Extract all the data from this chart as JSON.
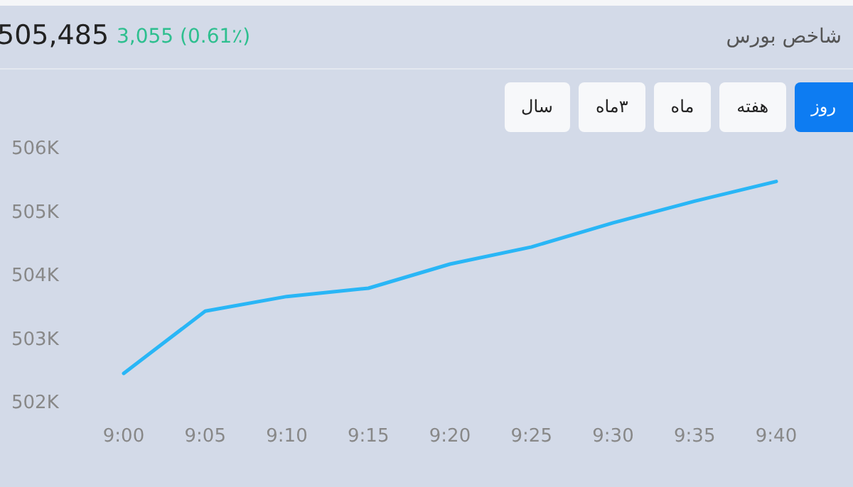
{
  "chart_data": {
    "type": "line",
    "title": "شاخص بورس",
    "annotations": [
      "505,485",
      "3,055 (0.61٪)",
      "روز",
      "هفته",
      "ماه",
      "۳ماه",
      "سال"
    ],
    "categories": [
      "9:00",
      "9:05",
      "9:10",
      "9:15",
      "9:20",
      "9:25",
      "9:30",
      "9:35",
      "9:40"
    ],
    "series": [
      {
        "color": "#29b6f6",
        "values": [
          502470,
          503450,
          503680,
          503810,
          504190,
          504460,
          504840,
          505180,
          505490
        ]
      }
    ],
    "ylim": [
      502000,
      506000
    ],
    "yticks": [
      {
        "value": 502000,
        "label": "502K"
      },
      {
        "value": 503000,
        "label": "503K"
      },
      {
        "value": 504000,
        "label": "504K"
      },
      {
        "value": 505000,
        "label": "505K"
      },
      {
        "value": 506000,
        "label": "506K"
      }
    ],
    "grid": false,
    "marker": "none",
    "line_style": "solid"
  }
}
